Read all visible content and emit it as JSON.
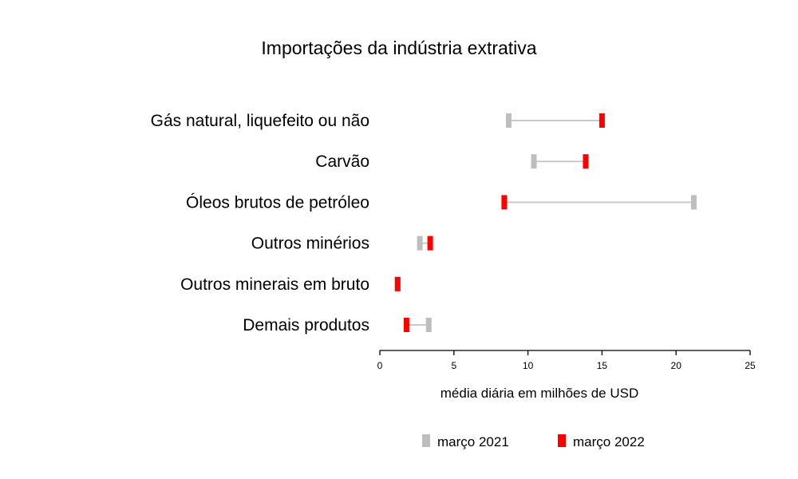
{
  "chart_data": {
    "type": "dumbbell",
    "title": "Importações da indústria extrativa",
    "xlabel": "média diária em milhões de USD",
    "xlim": [
      0,
      25
    ],
    "xticks": [
      0,
      5,
      10,
      15,
      20,
      25
    ],
    "categories": [
      "Gás natural, liquefeito ou não",
      "Carvão",
      "Óleos brutos de petróleo",
      "Outros minérios",
      "Outros minerais em bruto",
      "Demais produtos"
    ],
    "series": [
      {
        "name": "março 2021",
        "color": "#bebebe",
        "values": [
          8.7,
          10.4,
          21.2,
          2.7,
          1.2,
          3.3
        ]
      },
      {
        "name": "março 2022",
        "color": "#ff0000",
        "values": [
          15.0,
          13.9,
          8.4,
          3.4,
          1.2,
          1.8
        ]
      }
    ],
    "grid": false,
    "legend_position": "bottom"
  }
}
